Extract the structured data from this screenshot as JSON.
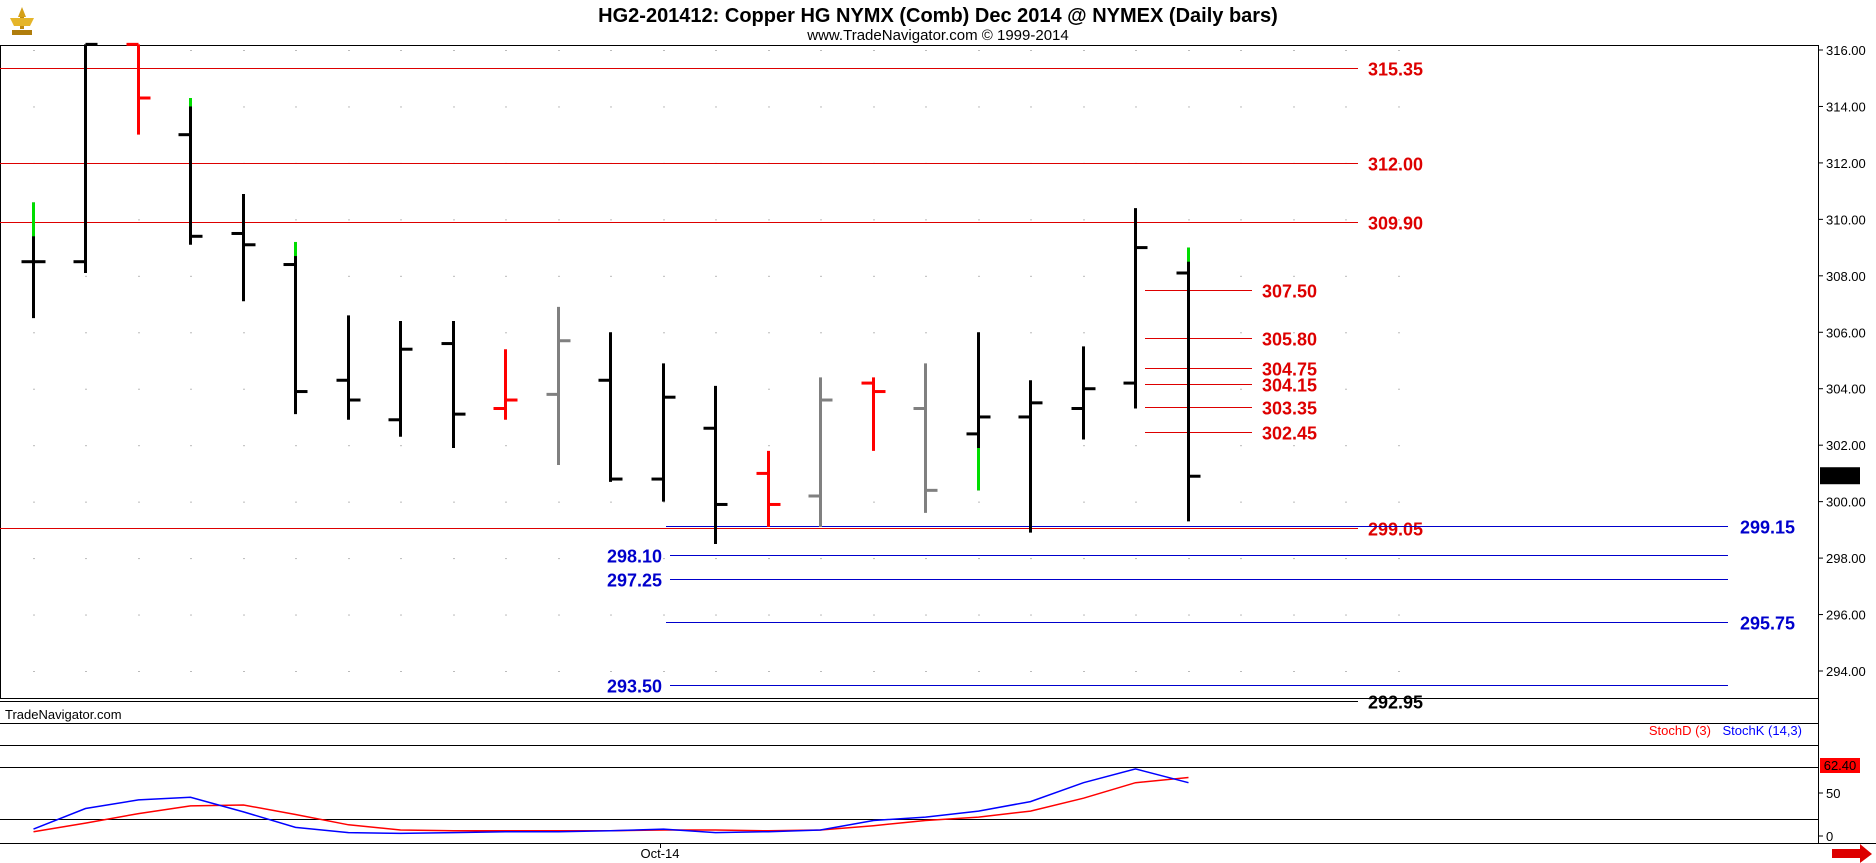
{
  "header": {
    "title": "HG2-201412:  Copper HG NYMX (Comb) Dec 2014 @ NYMEX  (Daily bars)",
    "subtitle": "www.TradeNavigator.com © 1999-2014",
    "logo_icon": "golden-trophy-logo-icon"
  },
  "watermark": "TradeNavigator.com",
  "scroll_arrow_icon": "red-right-arrow-icon",
  "chart_data": [
    {
      "type": "ohlc",
      "title": "HG2-201412:  Copper HG NYMX (Comb) Dec 2014 @ NYMEX  (Daily bars)",
      "ylim": [
        292.6,
        316.2
      ],
      "y_ticks": [
        "316.00",
        "314.00",
        "312.00",
        "310.00",
        "308.00",
        "306.00",
        "304.00",
        "302.00",
        "300.00",
        "298.00",
        "296.00",
        "294.00"
      ],
      "x_label": "Oct-14",
      "last_price": "300.90",
      "colors": {
        "up": "#00dd00",
        "down": "#ff0000",
        "neutral": "#808080",
        "bar": "#000000",
        "resistance": "#dd0000",
        "support": "#0000cc"
      },
      "bars": [
        {
          "open": 308.5,
          "high": 310.6,
          "low": 306.5,
          "close": 308.5,
          "color": "#000000",
          "tip": "#00dd00",
          "tip_from": 309.4
        },
        {
          "open": 308.5,
          "high": 316.2,
          "low": 308.1,
          "close": 316.2,
          "color": "#000000"
        },
        {
          "open": 316.2,
          "high": 316.2,
          "low": 313.0,
          "close": 314.3,
          "color": "#ff0000"
        },
        {
          "open": 313.0,
          "high": 314.3,
          "low": 309.1,
          "close": 309.4,
          "color": "#000000",
          "tip": "#00dd00",
          "tip_from": 314.0
        },
        {
          "open": 309.5,
          "high": 310.9,
          "low": 307.1,
          "close": 309.1,
          "color": "#000000"
        },
        {
          "open": 308.4,
          "high": 309.2,
          "low": 303.1,
          "close": 303.9,
          "color": "#000000",
          "tip": "#00dd00",
          "tip_from": 308.7
        },
        {
          "open": 304.3,
          "high": 306.6,
          "low": 302.9,
          "close": 303.6,
          "color": "#000000"
        },
        {
          "open": 302.9,
          "high": 306.4,
          "low": 302.3,
          "close": 305.4,
          "color": "#000000"
        },
        {
          "open": 305.6,
          "high": 306.4,
          "low": 301.9,
          "close": 303.1,
          "color": "#000000"
        },
        {
          "open": 303.3,
          "high": 305.4,
          "low": 302.9,
          "close": 303.6,
          "color": "#ff0000"
        },
        {
          "open": 303.8,
          "high": 306.9,
          "low": 301.3,
          "close": 305.7,
          "color": "#808080"
        },
        {
          "open": 304.3,
          "high": 306.0,
          "low": 300.7,
          "close": 300.8,
          "color": "#000000"
        },
        {
          "open": 300.8,
          "high": 304.9,
          "low": 300.0,
          "close": 303.7,
          "color": "#000000"
        },
        {
          "open": 302.6,
          "high": 304.1,
          "low": 298.5,
          "close": 299.9,
          "color": "#000000"
        },
        {
          "open": 301.0,
          "high": 301.8,
          "low": 299.1,
          "close": 299.9,
          "color": "#ff0000"
        },
        {
          "open": 300.2,
          "high": 304.4,
          "low": 299.1,
          "close": 303.6,
          "color": "#808080"
        },
        {
          "open": 304.2,
          "high": 304.4,
          "low": 301.8,
          "close": 303.9,
          "color": "#ff0000"
        },
        {
          "open": 303.3,
          "high": 304.9,
          "low": 299.6,
          "close": 300.4,
          "color": "#808080"
        },
        {
          "open": 302.4,
          "high": 306.0,
          "low": 300.4,
          "close": 303.0,
          "color": "#000000",
          "tip": "#00dd00",
          "tip_from": 301.9,
          "tip_bottom": true
        },
        {
          "open": 303.0,
          "high": 304.3,
          "low": 298.9,
          "close": 303.5,
          "color": "#000000"
        },
        {
          "open": 303.3,
          "high": 305.5,
          "low": 302.2,
          "close": 304.0,
          "color": "#000000"
        },
        {
          "open": 304.2,
          "high": 310.4,
          "low": 303.3,
          "close": 309.0,
          "color": "#000000"
        },
        {
          "open": 308.1,
          "high": 309.0,
          "low": 299.3,
          "close": 300.9,
          "color": "#000000",
          "tip": "#00dd00",
          "tip_from": 308.5
        }
      ],
      "levels": [
        {
          "label": "315.35",
          "value": 315.35,
          "color": "#dd0000",
          "kind": "full"
        },
        {
          "label": "312.00",
          "value": 312.0,
          "color": "#dd0000",
          "kind": "full"
        },
        {
          "label": "309.90",
          "value": 309.9,
          "color": "#dd0000",
          "kind": "full"
        },
        {
          "label": "307.50",
          "value": 307.5,
          "color": "#dd0000",
          "kind": "short"
        },
        {
          "label": "305.80",
          "value": 305.8,
          "color": "#dd0000",
          "kind": "short"
        },
        {
          "label": "304.75",
          "value": 304.75,
          "color": "#dd0000",
          "kind": "short"
        },
        {
          "label": "304.15",
          "value": 304.15,
          "color": "#dd0000",
          "kind": "short"
        },
        {
          "label": "303.35",
          "value": 303.35,
          "color": "#dd0000",
          "kind": "short"
        },
        {
          "label": "302.45",
          "value": 302.45,
          "color": "#dd0000",
          "kind": "short"
        },
        {
          "label": "299.05",
          "value": 299.05,
          "color": "#dd0000",
          "kind": "full"
        },
        {
          "label": "299.15",
          "value": 299.15,
          "color": "#0000cc",
          "kind": "support-right"
        },
        {
          "label": "298.10",
          "value": 298.1,
          "color": "#0000cc",
          "kind": "support-left"
        },
        {
          "label": "297.25",
          "value": 297.25,
          "color": "#0000cc",
          "kind": "support-left"
        },
        {
          "label": "295.75",
          "value": 295.75,
          "color": "#0000cc",
          "kind": "support-right"
        },
        {
          "label": "293.50",
          "value": 293.5,
          "color": "#0000cc",
          "kind": "support-left"
        },
        {
          "label": "292.95",
          "value": 292.95,
          "color": "#000000",
          "kind": "full"
        }
      ]
    },
    {
      "type": "line",
      "ylim": [
        0,
        100
      ],
      "y_ticks": [
        "50",
        "0"
      ],
      "last_value": "62.40",
      "series": [
        {
          "name": "StochD (3)",
          "color": "#ff0000",
          "values": [
            5,
            15,
            26,
            35,
            36,
            25,
            13,
            7,
            6,
            6,
            6,
            6,
            7,
            7,
            6,
            7,
            12,
            18,
            22,
            29,
            44,
            62,
            68
          ]
        },
        {
          "name": "StochK (14,3)",
          "color": "#0000ff",
          "values": [
            8,
            32,
            42,
            45,
            28,
            10,
            4,
            3,
            4,
            5,
            5,
            6,
            8,
            4,
            5,
            7,
            18,
            22,
            29,
            40,
            62,
            78,
            62
          ]
        }
      ]
    }
  ]
}
